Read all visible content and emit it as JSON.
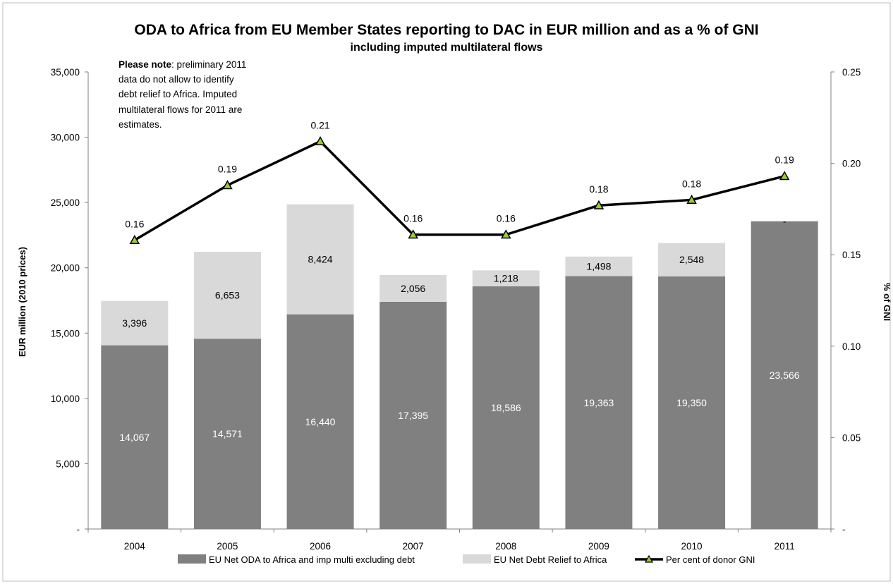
{
  "chart_data": {
    "type": "bar",
    "title": "ODA to Africa from EU Member States reporting to DAC in EUR million and as a % of GNI",
    "subtitle": "including imputed multilateral flows",
    "ylabel": "EUR million (2010 prices)",
    "y2label": "% of GNI",
    "categories": [
      "2004",
      "2005",
      "2006",
      "2007",
      "2008",
      "2009",
      "2010",
      "2011"
    ],
    "ylim": [
      0,
      35000
    ],
    "y2lim": [
      0,
      0.25
    ],
    "yticks": [
      "-",
      "5,000",
      "10,000",
      "15,000",
      "20,000",
      "25,000",
      "30,000",
      "35,000"
    ],
    "y2ticks": [
      "-",
      "0.05",
      "0.10",
      "0.15",
      "0.20",
      "0.25"
    ],
    "stacked": true,
    "series": [
      {
        "name": "EU Net ODA to Africa and imp multi excluding debt",
        "kind": "bar",
        "color": "#808080",
        "values": [
          14067,
          14571,
          16440,
          17395,
          18586,
          19363,
          19350,
          23566
        ],
        "labels": [
          "14,067",
          "14,571",
          "16,440",
          "17,395",
          "18,586",
          "19,363",
          "19,350",
          "23,566"
        ]
      },
      {
        "name": "EU Net Debt Relief to Africa",
        "kind": "bar",
        "color": "#d9d9d9",
        "values": [
          3396,
          6653,
          8424,
          2056,
          1218,
          1498,
          2548,
          0
        ],
        "labels": [
          "3,396",
          "6,653",
          "8,424",
          "2,056",
          "1,218",
          "1,498",
          "2,548",
          "-"
        ]
      },
      {
        "name": "Per cent of donor GNI",
        "kind": "line",
        "axis": "right",
        "color": "#000000",
        "marker_color": "#9acd32",
        "values": [
          0.158,
          0.188,
          0.212,
          0.161,
          0.161,
          0.177,
          0.18,
          0.193
        ],
        "labels": [
          "0.16",
          "0.19",
          "0.21",
          "0.16",
          "0.16",
          "0.18",
          "0.18",
          "0.19"
        ]
      }
    ],
    "legend_position": "bottom",
    "grid": false
  },
  "note": {
    "bold": "Please note",
    "lines": [
      ":  preliminary 2011",
      "data do not allow to identify",
      "debt relief to Africa.  Imputed",
      "multilateral flows for 2011 are",
      "estimates."
    ]
  }
}
